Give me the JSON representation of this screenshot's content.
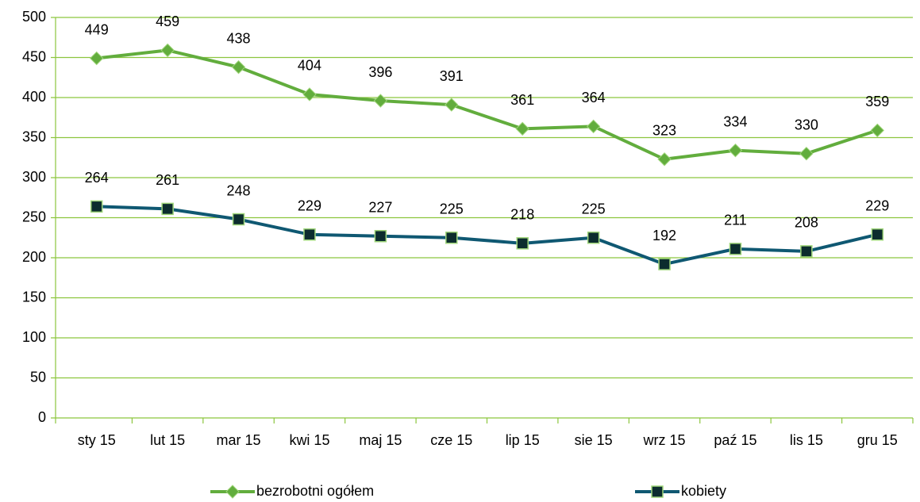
{
  "chart_data": {
    "type": "line",
    "categories": [
      "sty 15",
      "lut 15",
      "mar 15",
      "kwi 15",
      "maj 15",
      "cze 15",
      "lip 15",
      "sie 15",
      "wrz 15",
      "paź 15",
      "lis 15",
      "gru 15"
    ],
    "series": [
      {
        "name": "bezrobotni ogółem",
        "color": "#62ad3d",
        "marker": "diamond",
        "values": [
          449,
          459,
          438,
          404,
          396,
          391,
          361,
          364,
          323,
          334,
          330,
          359
        ]
      },
      {
        "name": "kobiety",
        "color": "#0f5872",
        "marker": "square",
        "values": [
          264,
          261,
          248,
          229,
          227,
          225,
          218,
          225,
          192,
          211,
          208,
          229
        ]
      }
    ],
    "ylim": [
      0,
      500
    ],
    "yticks": [
      0,
      50,
      100,
      150,
      200,
      250,
      300,
      350,
      400,
      450,
      500
    ],
    "grid": true
  }
}
